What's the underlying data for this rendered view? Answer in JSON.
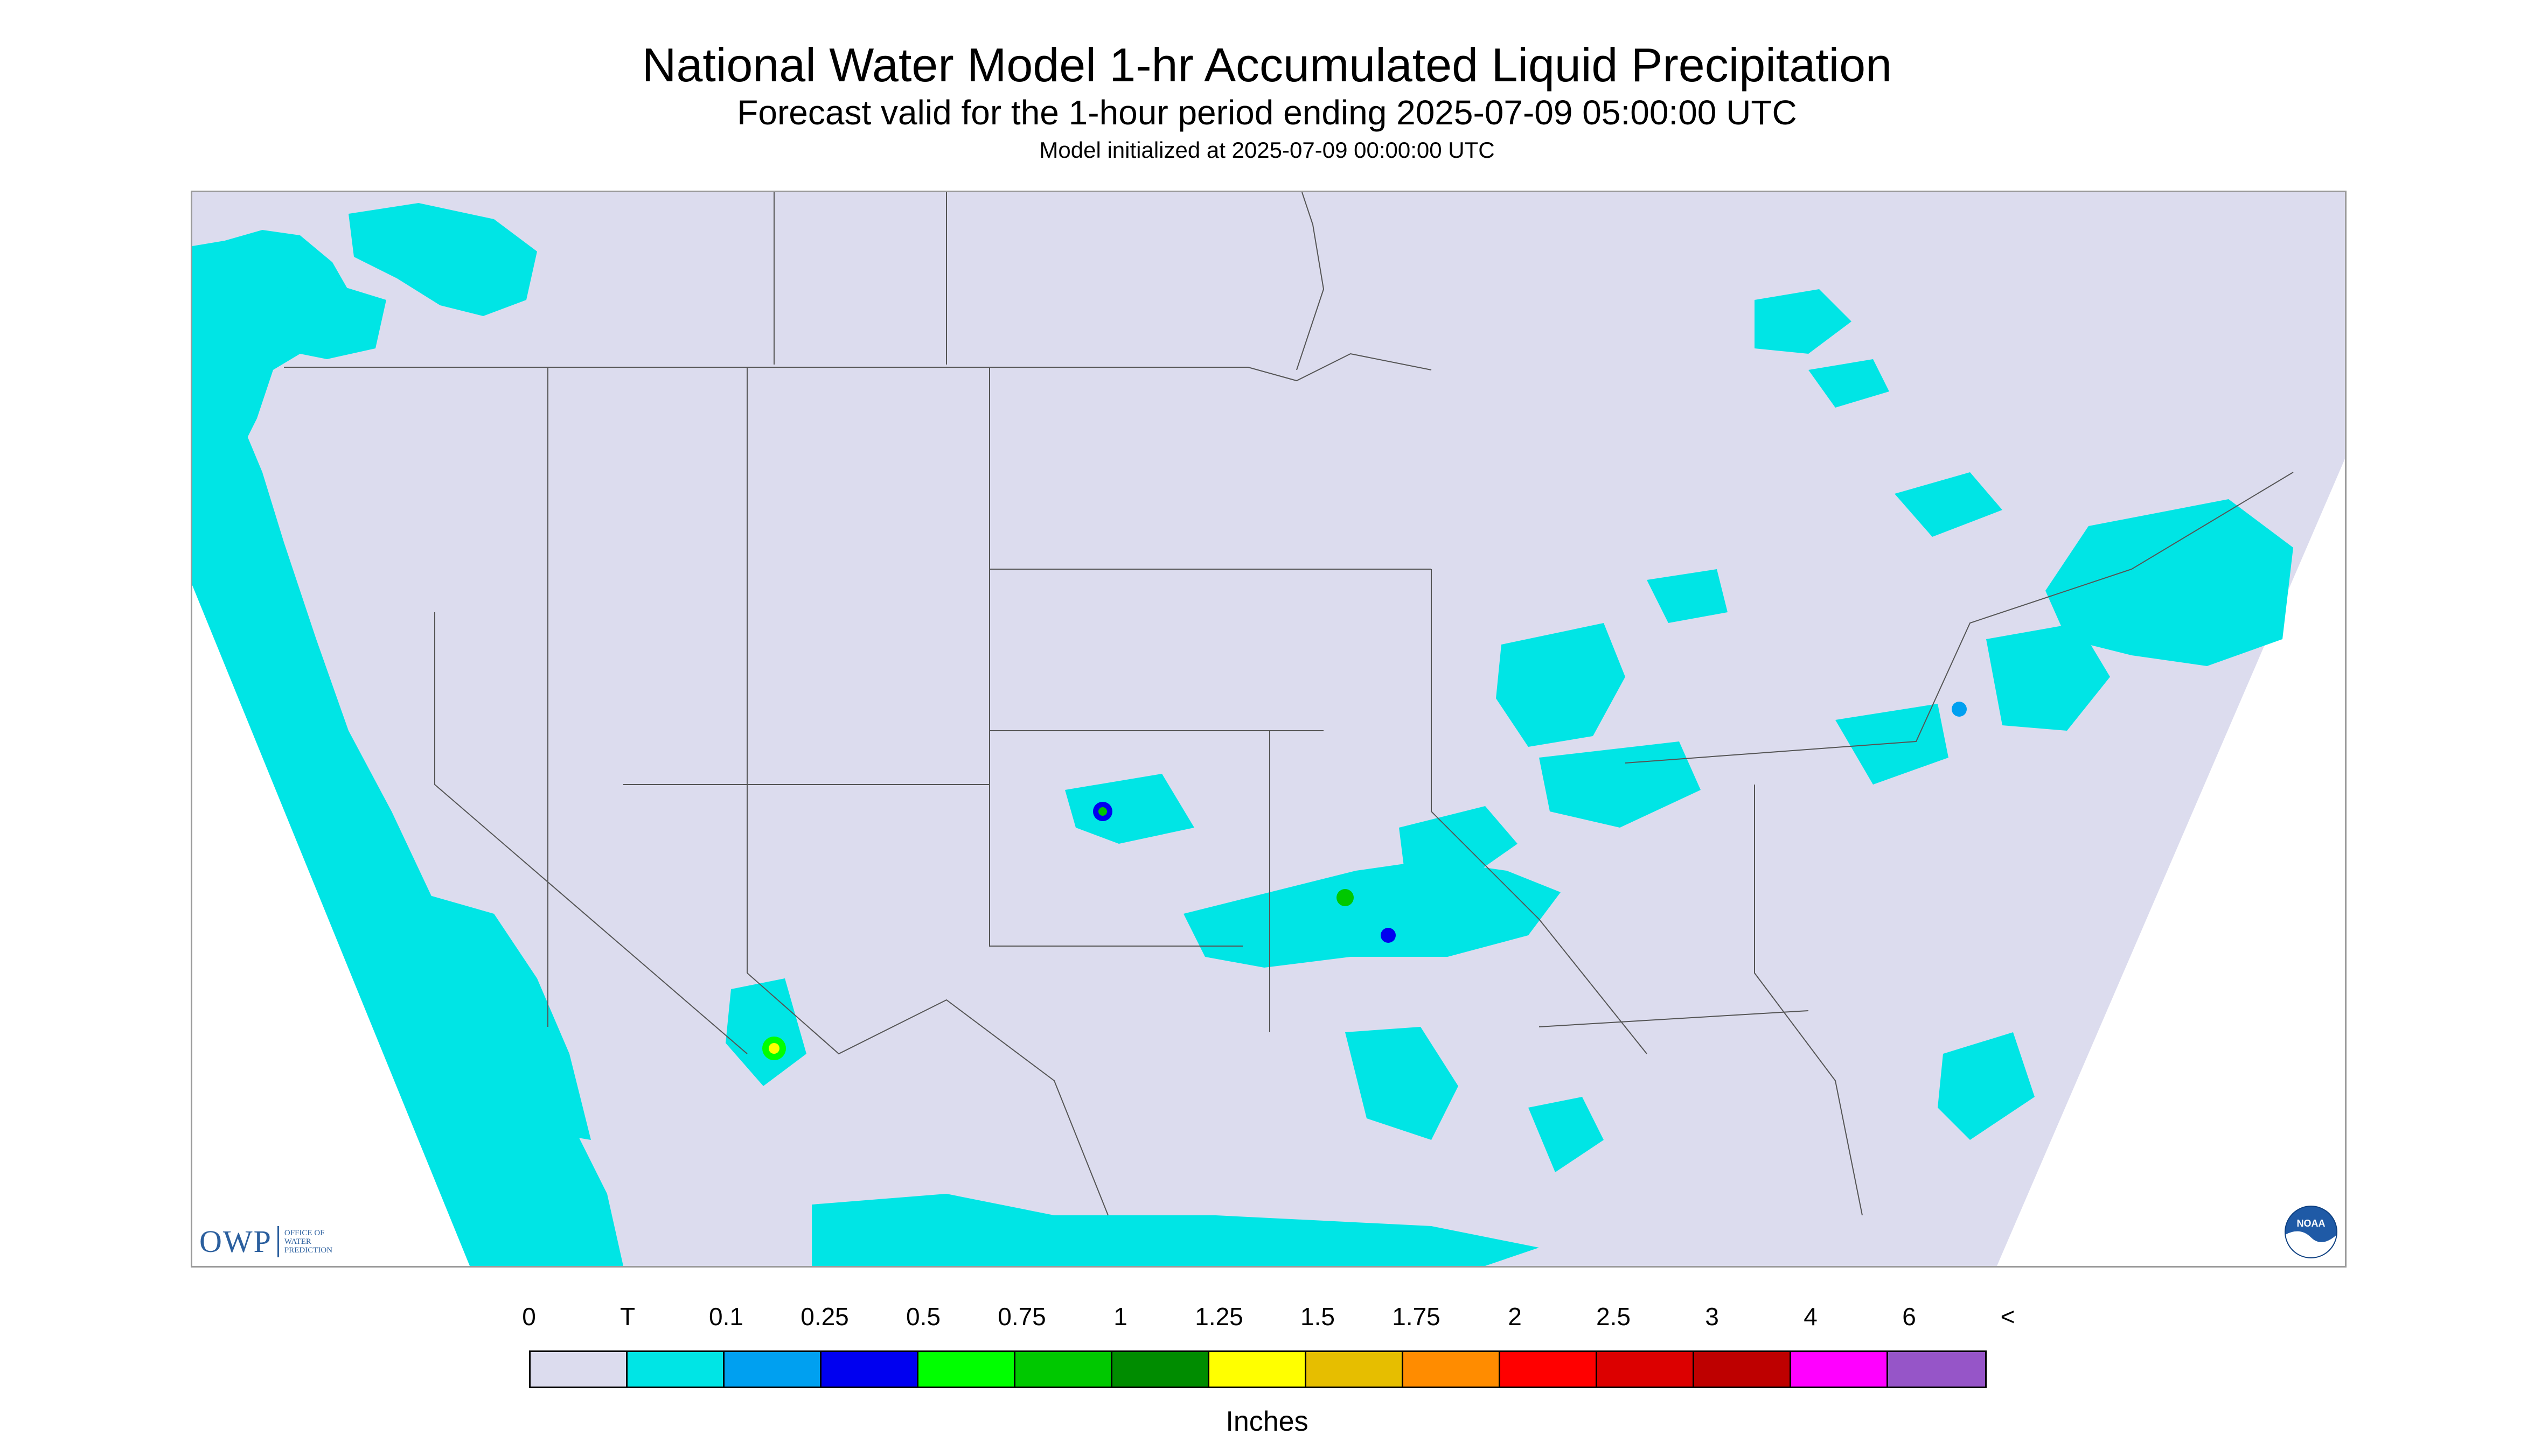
{
  "title": "National Water Model 1-hr Accumulated Liquid Precipitation",
  "subtitle": "Forecast valid for the 1-hour period ending 2025-07-09 05:00:00 UTC",
  "init_text": "Model initialized at 2025-07-09 00:00:00 UTC",
  "logo": {
    "owp_abbr": "OWP",
    "owp_line1": "OFFICE OF",
    "owp_line2": "WATER",
    "owp_line3": "PREDICTION",
    "noaa_text": "NOAA"
  },
  "colors": {
    "map_bg": "#dcdcee",
    "trace": "#00e5e5",
    "boundary": "#555555",
    "outside": "#ffffff"
  },
  "legend": {
    "units": "Inches",
    "labels": [
      "0",
      "T",
      "0.1",
      "0.25",
      "0.5",
      "0.75",
      "1",
      "1.25",
      "1.5",
      "1.75",
      "2",
      "2.5",
      "3",
      "4",
      "6",
      "<"
    ],
    "colors": [
      "#dcdcee",
      "#00e5e5",
      "#00a0f0",
      "#0000f0",
      "#00ff00",
      "#00c800",
      "#008c00",
      "#ffff00",
      "#e6be00",
      "#ff8c00",
      "#ff0000",
      "#dc0000",
      "#be0000",
      "#ff00ff",
      "#9655c8"
    ]
  }
}
